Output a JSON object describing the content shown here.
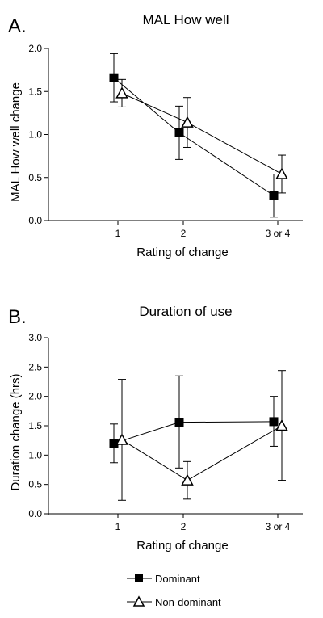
{
  "chart_data": [
    {
      "type": "line",
      "panel_letter": "A.",
      "title": "MAL How well",
      "xlabel": "Rating of change",
      "ylabel": "MAL How well change",
      "categories": [
        "1",
        "2",
        "3 or 4"
      ],
      "ylim": [
        0.0,
        2.0
      ],
      "yticks": [
        0.0,
        0.5,
        1.0,
        1.5,
        2.0
      ],
      "ytick_labels": [
        "0.0",
        "0.5",
        "1.0",
        "1.5",
        "2.0"
      ],
      "error_bars": true,
      "series": [
        {
          "name": "Dominant",
          "marker": "filled-square",
          "values": [
            1.66,
            1.02,
            0.29
          ],
          "err_low": [
            1.38,
            0.71,
            0.04
          ],
          "err_high": [
            1.94,
            1.33,
            0.54
          ]
        },
        {
          "name": "Non-dominant",
          "marker": "open-triangle",
          "values": [
            1.48,
            1.14,
            0.54
          ],
          "err_low": [
            1.32,
            0.85,
            0.32
          ],
          "err_high": [
            1.64,
            1.43,
            0.76
          ]
        }
      ]
    },
    {
      "type": "line",
      "panel_letter": "B.",
      "title": "Duration of use",
      "xlabel": "Rating of change",
      "ylabel": "Duration change (hrs)",
      "categories": [
        "1",
        "2",
        "3 or 4"
      ],
      "ylim": [
        0.0,
        3.0
      ],
      "yticks": [
        0.0,
        0.5,
        1.0,
        1.5,
        2.0,
        2.5,
        3.0
      ],
      "ytick_labels": [
        "0.0",
        "0.5",
        "1.0",
        "1.5",
        "2.0",
        "2.5",
        "3.0"
      ],
      "error_bars": true,
      "series": [
        {
          "name": "Dominant",
          "marker": "filled-square",
          "values": [
            1.2,
            1.56,
            1.57
          ],
          "err_low": [
            0.87,
            0.78,
            1.15
          ],
          "err_high": [
            1.53,
            2.35,
            2.0
          ]
        },
        {
          "name": "Non-dominant",
          "marker": "open-triangle",
          "values": [
            1.26,
            0.57,
            1.5
          ],
          "err_low": [
            0.23,
            0.25,
            0.57
          ],
          "err_high": [
            2.29,
            0.89,
            2.44
          ]
        }
      ]
    }
  ],
  "legend": {
    "placement": "bottom-center",
    "items": [
      {
        "label": "Dominant",
        "marker": "filled-square"
      },
      {
        "label": "Non-dominant",
        "marker": "open-triangle"
      }
    ]
  }
}
